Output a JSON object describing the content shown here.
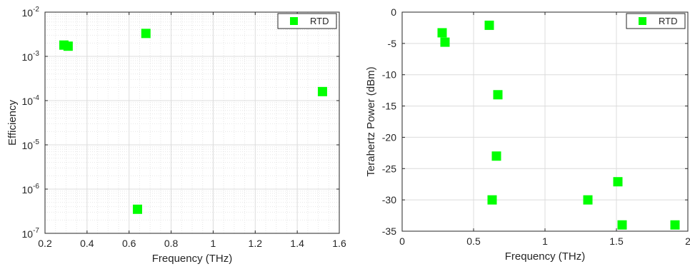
{
  "chart_data": [
    {
      "type": "scatter",
      "title": "",
      "xlabel": "Frequency (THz)",
      "ylabel": "Efficiency",
      "xlim": [
        0.2,
        1.6
      ],
      "ylim": [
        1e-07,
        0.01
      ],
      "yscale": "log",
      "grid": true,
      "minor_grid": true,
      "legend_position": "top-right",
      "marker": "square",
      "xticks": [
        0.2,
        0.4,
        0.6,
        0.8,
        1,
        1.2,
        1.4,
        1.6
      ],
      "xtick_labels": [
        "0.2",
        "0.4",
        "0.6",
        "0.8",
        "1",
        "1.2",
        "1.4",
        "1.6"
      ],
      "yticks": [
        1e-07,
        1e-06,
        1e-05,
        0.0001,
        0.001,
        0.01
      ],
      "ytick_labels": [
        {
          "base": "10",
          "exp": "-7"
        },
        {
          "base": "10",
          "exp": "-6"
        },
        {
          "base": "10",
          "exp": "-5"
        },
        {
          "base": "10",
          "exp": "-4"
        },
        {
          "base": "10",
          "exp": "-3"
        },
        {
          "base": "10",
          "exp": "-2"
        }
      ],
      "series": [
        {
          "name": "RTD",
          "color": "#00ff00",
          "points": [
            {
              "x": 0.29,
              "y": 0.0018
            },
            {
              "x": 0.31,
              "y": 0.0017
            },
            {
              "x": 0.68,
              "y": 0.0033
            },
            {
              "x": 0.64,
              "y": 3.5e-07
            },
            {
              "x": 1.52,
              "y": 0.00016
            }
          ]
        }
      ]
    },
    {
      "type": "scatter",
      "title": "",
      "xlabel": "Frequency (THz)",
      "ylabel": "Terahertz Power (dBm)",
      "xlim": [
        0,
        2
      ],
      "ylim": [
        -35,
        0
      ],
      "yscale": "linear",
      "grid": true,
      "minor_grid": false,
      "legend_position": "top-right",
      "marker": "square",
      "xticks": [
        0,
        0.5,
        1,
        1.5,
        2
      ],
      "xtick_labels": [
        "0",
        "0.5",
        "1",
        "1.5",
        "2"
      ],
      "yticks": [
        0,
        -5,
        -10,
        -15,
        -20,
        -25,
        -30,
        -35
      ],
      "ytick_labels": [
        "0",
        "-5",
        "-10",
        "-15",
        "-20",
        "-25",
        "-30",
        "-35"
      ],
      "series": [
        {
          "name": "RTD",
          "color": "#00ff00",
          "points": [
            {
              "x": 0.28,
              "y": -3.3
            },
            {
              "x": 0.3,
              "y": -4.8
            },
            {
              "x": 0.61,
              "y": -2.1
            },
            {
              "x": 0.67,
              "y": -13.2
            },
            {
              "x": 0.66,
              "y": -23.0
            },
            {
              "x": 0.63,
              "y": -30.0
            },
            {
              "x": 1.3,
              "y": -30.0
            },
            {
              "x": 1.51,
              "y": -27.1
            },
            {
              "x": 1.54,
              "y": -34.0
            },
            {
              "x": 1.91,
              "y": -34.0
            }
          ]
        }
      ]
    }
  ]
}
